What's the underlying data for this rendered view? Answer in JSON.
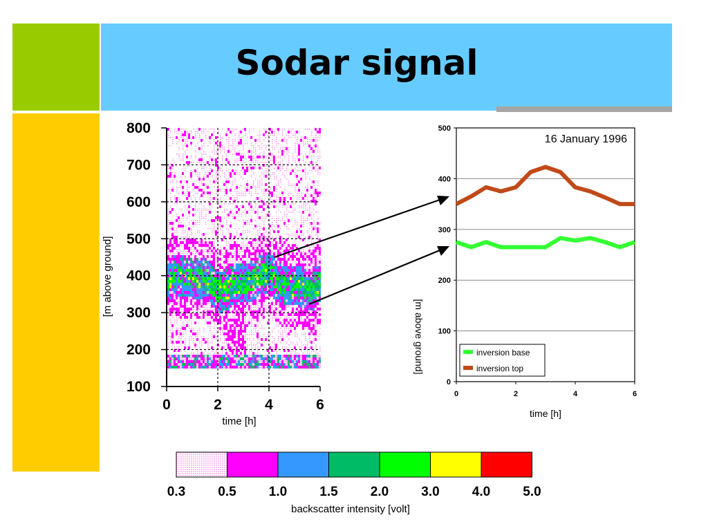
{
  "slide": {
    "title": "Sodar signal"
  },
  "chart_data": [
    {
      "type": "heatmap",
      "xlabel": "time [h]",
      "ylabel": "[m above ground]",
      "xlim": [
        0,
        6
      ],
      "ylim": [
        100,
        800
      ],
      "xticks": [
        "0",
        "2",
        "4",
        "6"
      ],
      "yticks": [
        "100",
        "200",
        "300",
        "400",
        "500",
        "600",
        "700",
        "800"
      ],
      "grid": true
    },
    {
      "type": "line",
      "title": "16 January 1996",
      "xlabel": "time [h]",
      "ylabel": "[m above ground]",
      "xlim": [
        0,
        6
      ],
      "ylim": [
        0,
        500
      ],
      "xticks": [
        "0",
        "2",
        "4",
        "6"
      ],
      "yticks": [
        "0",
        "100",
        "200",
        "300",
        "400",
        "500"
      ],
      "grid": true,
      "legend_position": "bottom-left",
      "x": [
        0,
        0.5,
        1,
        1.5,
        2,
        2.5,
        3,
        3.5,
        4,
        4.5,
        5,
        5.5,
        6
      ],
      "series": [
        {
          "name": "inversion base",
          "color": "#33ff33",
          "values": [
            275,
            265,
            275,
            265,
            265,
            265,
            265,
            283,
            278,
            283,
            275,
            265,
            275
          ]
        },
        {
          "name": "inversion top",
          "color": "#c04a1a",
          "values": [
            350,
            365,
            383,
            375,
            383,
            413,
            423,
            413,
            383,
            375,
            363,
            350,
            350
          ]
        }
      ]
    },
    {
      "type": "colorbar",
      "label": "backscatter intensity [volt]",
      "ticks": [
        "0.3",
        "0.5",
        "1.0",
        "1.5",
        "2.0",
        "3.0",
        "4.0",
        "5.0"
      ],
      "colors": [
        "#ffccff",
        "#ff00ff",
        "#3399ff",
        "#00bb66",
        "#00ff00",
        "#ffff00",
        "#ff0000"
      ]
    }
  ]
}
